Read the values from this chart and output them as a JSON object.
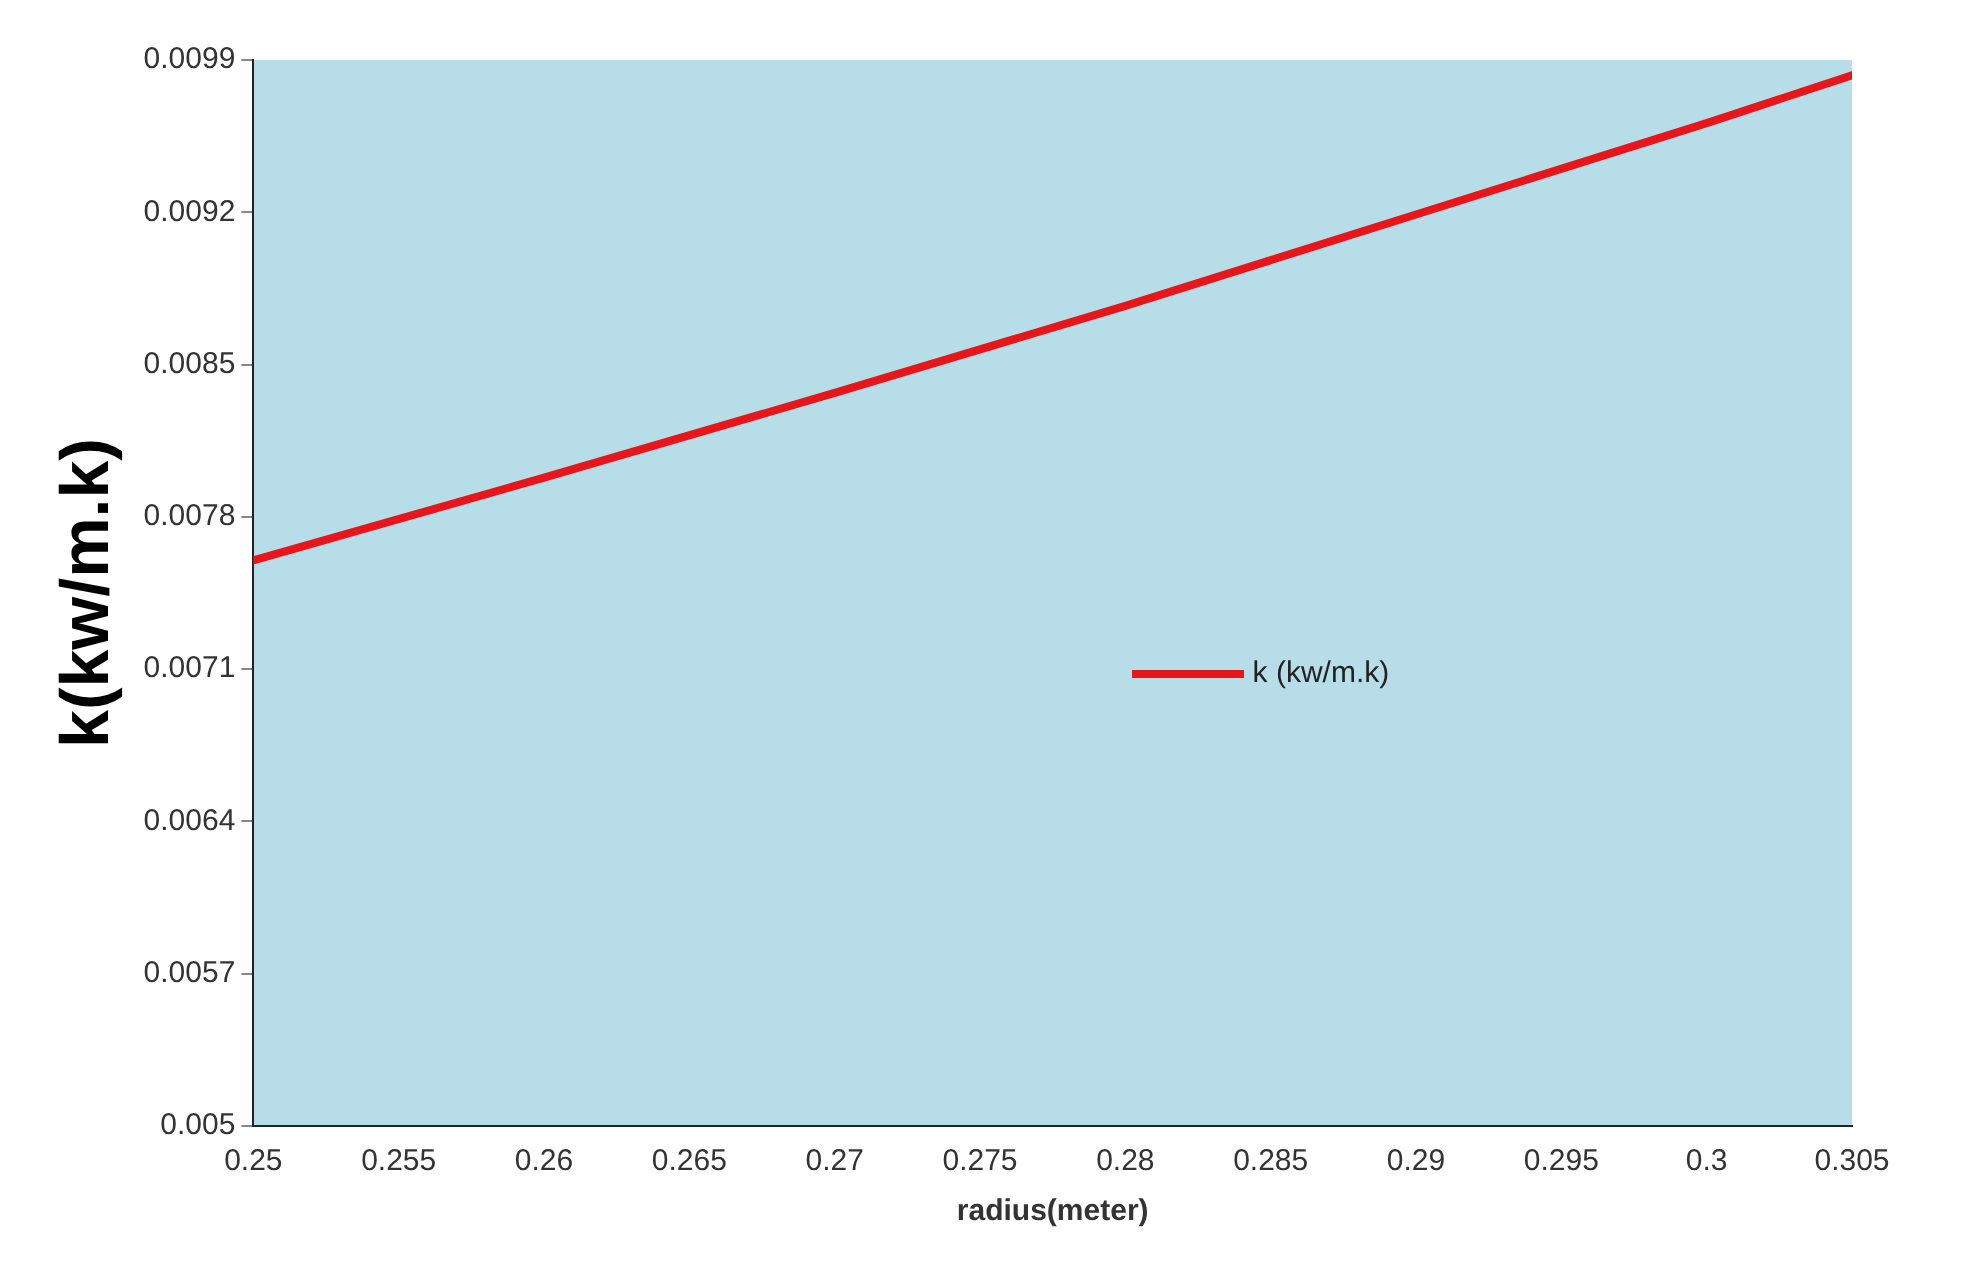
{
  "chart_data": {
    "type": "line",
    "xlabel": "radius(meter)",
    "ylabel": "k(kw/m.k)",
    "x": [
      0.25,
      0.26,
      0.27,
      0.28,
      0.29,
      0.3,
      0.305
    ],
    "series": [
      {
        "name": "k (kw/m.k)",
        "color": "#e8161b",
        "values": [
          0.0076,
          0.00798,
          0.00837,
          0.00877,
          0.00919,
          0.00961,
          0.00983
        ]
      }
    ],
    "xlim": [
      0.25,
      0.305
    ],
    "xticks": [
      0.25,
      0.255,
      0.26,
      0.265,
      0.27,
      0.275,
      0.28,
      0.285,
      0.29,
      0.295,
      0.3,
      0.305
    ],
    "ylim": [
      0.005,
      0.0099
    ],
    "yticks": [
      0.005,
      0.0057,
      0.0064,
      0.0071,
      0.0078,
      0.0085,
      0.0092,
      0.0099
    ],
    "grid": false,
    "legend": "right",
    "marker": "none",
    "line_style": "solid"
  }
}
